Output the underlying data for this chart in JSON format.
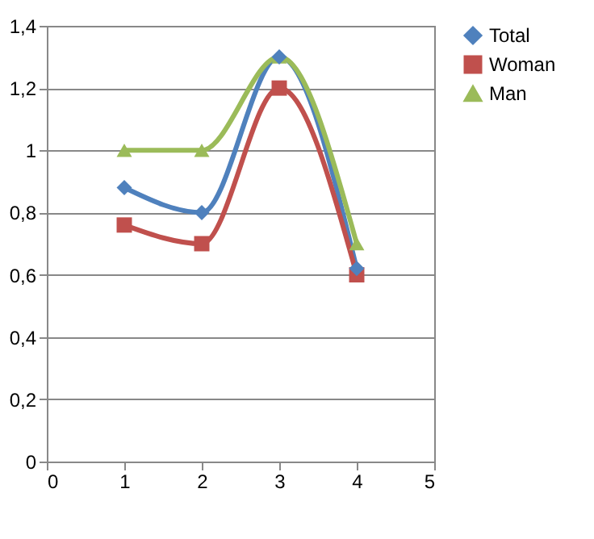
{
  "chart_data": {
    "type": "line",
    "x": [
      1,
      2,
      3,
      4
    ],
    "series": [
      {
        "name": "Total",
        "color": "#4f81bd",
        "marker": "diamond",
        "values": [
          0.88,
          0.8,
          1.3,
          0.62
        ]
      },
      {
        "name": "Woman",
        "color": "#c0504d",
        "marker": "square",
        "values": [
          0.76,
          0.7,
          1.2,
          0.6
        ]
      },
      {
        "name": "Man",
        "color": "#9bbb59",
        "marker": "triangle",
        "values": [
          1.0,
          1.0,
          1.3,
          0.7
        ]
      }
    ],
    "xlim": [
      0,
      5
    ],
    "xticks": [
      0,
      1,
      2,
      3,
      4,
      5
    ],
    "ylim": [
      0,
      1.4
    ],
    "yticks": [
      0,
      {
        "value": 0.2,
        "label": "0,2"
      },
      {
        "value": 0.4,
        "label": "0,4"
      },
      {
        "value": 0.6,
        "label": "0,6"
      },
      {
        "value": 0.8,
        "label": "0,8"
      },
      1,
      {
        "value": 1.2,
        "label": "1,2"
      },
      {
        "value": 1.4,
        "label": "1,4"
      }
    ],
    "grid": "y",
    "legend": "right",
    "line_style": "solid"
  }
}
